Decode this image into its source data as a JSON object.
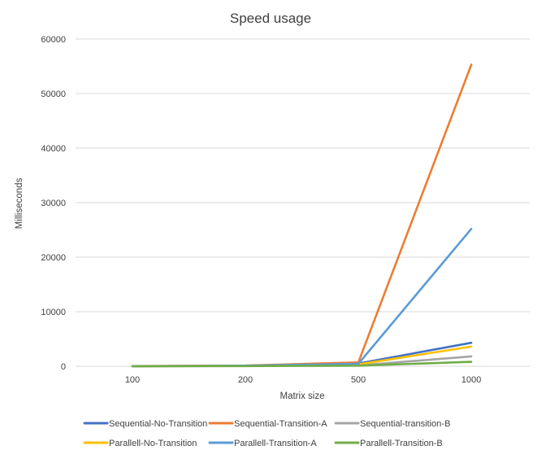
{
  "chart_data": {
    "type": "line",
    "title": "Speed usage",
    "xlabel": "Matrix size",
    "ylabel": "Milliseconds",
    "categories": [
      "100",
      "200",
      "500",
      "1000"
    ],
    "ylim": [
      0,
      60000
    ],
    "yticks": [
      "0",
      "10000",
      "20000",
      "30000",
      "40000",
      "50000",
      "60000"
    ],
    "grid": true,
    "legend_position": "bottom",
    "series": [
      {
        "name": "Sequential-No-Transition",
        "color": "#4472c4",
        "values": [
          20,
          80,
          500,
          4300
        ]
      },
      {
        "name": "Sequential-Transition-A",
        "color": "#ed7d31",
        "values": [
          25,
          120,
          700,
          55300
        ]
      },
      {
        "name": "Sequential-transition-B",
        "color": "#a5a5a5",
        "values": [
          10,
          40,
          150,
          1800
        ]
      },
      {
        "name": "Parallell-No-Transition",
        "color": "#ffc000",
        "values": [
          15,
          60,
          350,
          3600
        ]
      },
      {
        "name": "Parallell-Transition-A",
        "color": "#5b9bd5",
        "values": [
          20,
          100,
          450,
          25200
        ]
      },
      {
        "name": "Parallell-Transition-B",
        "color": "#70ad47",
        "values": [
          8,
          30,
          100,
          800
        ]
      }
    ]
  }
}
